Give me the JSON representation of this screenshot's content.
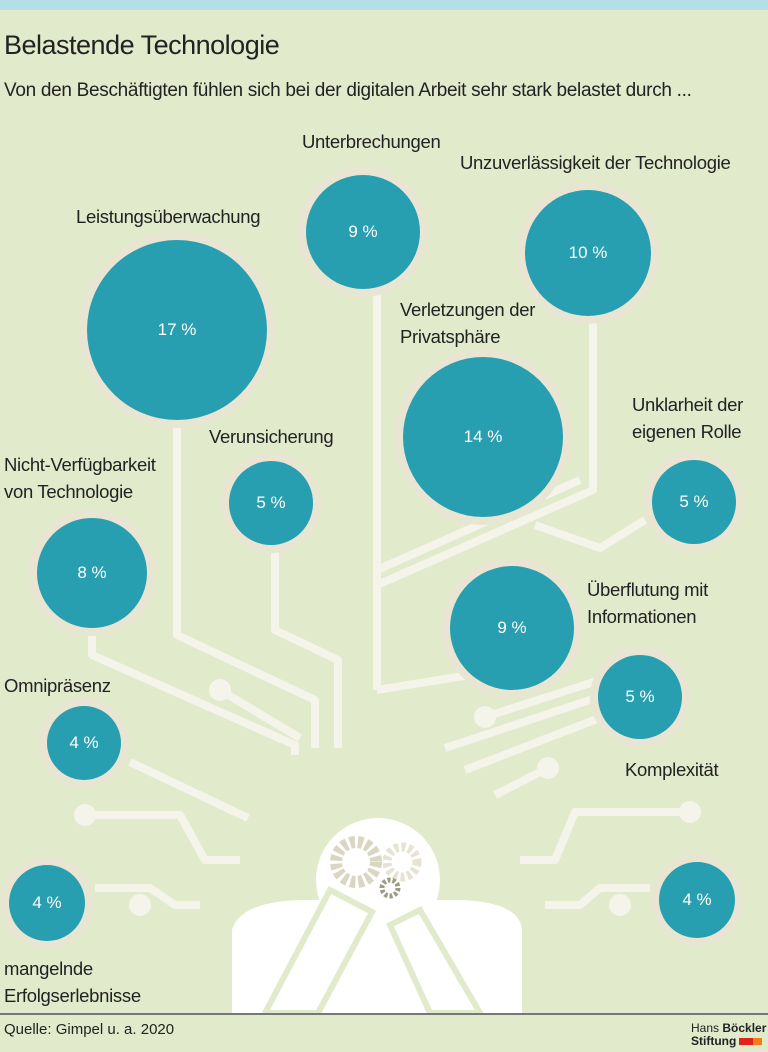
{
  "header": {
    "title": "Belastende Technologie",
    "subtitle": "Von den Beschäftigten fühlen sich bei der digitalen Arbeit sehr stark belastet durch ..."
  },
  "footer": {
    "source": "Quelle: Gimpel u. a. 2020",
    "logo_line1_a": "Hans",
    "logo_line1_b": "Böckler",
    "logo_line2": "Stiftung"
  },
  "colors": {
    "background": "#e2eacc",
    "bubble": "#279fb0",
    "ring": "#e8e5d3",
    "lines": "#f4f4ea"
  },
  "chart_data": {
    "type": "bubble",
    "unit": "%",
    "items": [
      {
        "label": "Leistungsüberwachung",
        "value": 17,
        "value_label": "17 %"
      },
      {
        "label": "Unterbrechungen",
        "value": 9,
        "value_label": "9 %"
      },
      {
        "label": "Unzuverlässigkeit der Technologie",
        "value": 10,
        "value_label": "10 %"
      },
      {
        "label": "Verletzungen der Privatsphäre",
        "value": 14,
        "value_label": "14 %"
      },
      {
        "label": "Verunsicherung",
        "value": 5,
        "value_label": "5 %"
      },
      {
        "label": "Unklarheit der eigenen Rolle",
        "value": 5,
        "value_label": "5 %"
      },
      {
        "label": "Nicht-Verfügbarkeit von Technologie",
        "value": 8,
        "value_label": "8 %"
      },
      {
        "label": "Überflutung mit Informationen",
        "value": 9,
        "value_label": "9 %"
      },
      {
        "label": "Komplexität",
        "value": 5,
        "value_label": "5 %"
      },
      {
        "label": "Omnipräsenz",
        "value": 4,
        "value_label": "4 %"
      },
      {
        "label": "mangelnde Erfolgserlebnisse",
        "value": 4,
        "value_label": "4 %"
      },
      {
        "label": "",
        "value": 4,
        "value_label": "4 %"
      }
    ]
  }
}
